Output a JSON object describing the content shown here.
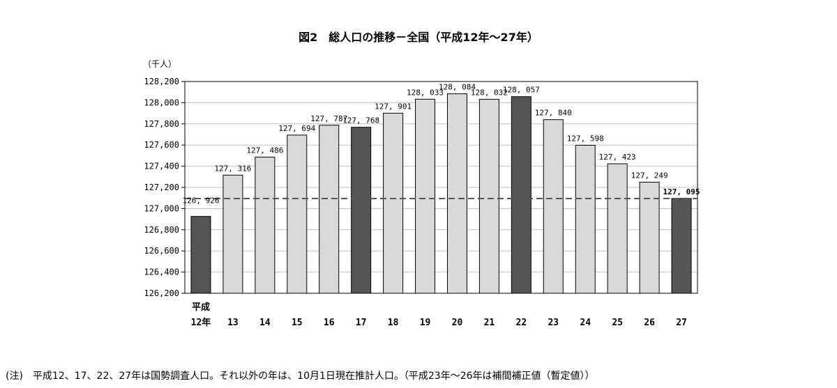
{
  "chart_data": {
    "type": "bar",
    "title": "図2　総人口の推移－全国（平成12年～27年）",
    "ylabel": "（千人）",
    "xlabel": "",
    "category_prefix": "平成",
    "categories": [
      "12年",
      "13",
      "14",
      "15",
      "16",
      "17",
      "18",
      "19",
      "20",
      "21",
      "22",
      "23",
      "24",
      "25",
      "26",
      "27"
    ],
    "values": [
      126926,
      127316,
      127486,
      127694,
      127787,
      127768,
      127901,
      128033,
      128084,
      128032,
      128057,
      127840,
      127598,
      127423,
      127249,
      127095
    ],
    "value_labels": [
      "126, 926",
      "127, 316",
      "127, 486",
      "127, 694",
      "127, 787",
      "127, 768",
      "127, 901",
      "128, 033",
      "128, 084",
      "128, 032",
      "128, 057",
      "127, 840",
      "127, 598",
      "127, 423",
      "127, 249",
      "127, 095"
    ],
    "census_years": [
      0,
      5,
      10,
      15
    ],
    "reference_line_value": 127095,
    "ylim": [
      126200,
      128200
    ],
    "yticks": [
      126200,
      126400,
      126600,
      126800,
      127000,
      127200,
      127400,
      127600,
      127800,
      128000,
      128200
    ],
    "ytick_labels": [
      "126,200",
      "126,400",
      "126,600",
      "126,800",
      "127,000",
      "127,200",
      "127,400",
      "127,600",
      "127,800",
      "128,000",
      "128,200"
    ],
    "grid": true,
    "colors": {
      "census": "#555555",
      "estimate": "#d9d9d9",
      "outline": "#000000",
      "grid": "#bfbfbf",
      "reference_line": "#555555"
    }
  },
  "note": "(注)　平成12、17、22、27年は国勢調査人口。それ以外の年は、10月1日現在推計人口。（平成23年～26年は補間補正値（暫定値））"
}
